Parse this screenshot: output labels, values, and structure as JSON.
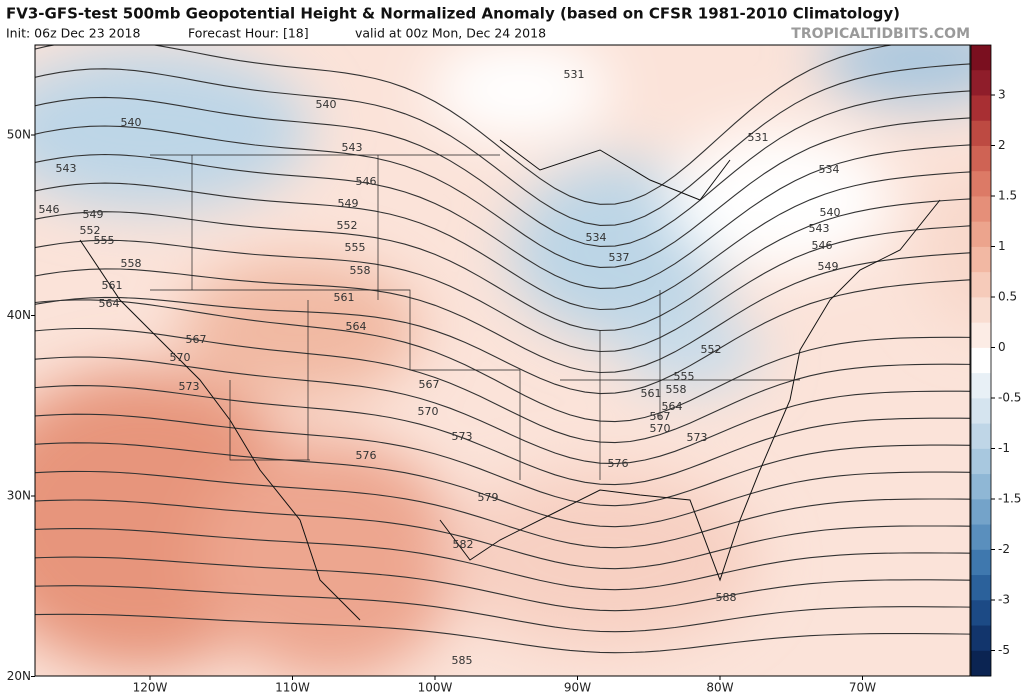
{
  "header": {
    "title": "FV3-GFS-test 500mb Geopotential Height & Normalized Anomaly (based on CFSR 1981-2010 Climatology)",
    "init": "Init: 06z Dec 23 2018",
    "forecast": "Forecast Hour: [18]",
    "valid": "valid at 00z Mon, Dec 24 2018",
    "watermark": "TROPICALTIDBITS.COM"
  },
  "map": {
    "lat_labels": [
      "50N",
      "40N",
      "30N",
      "20N"
    ],
    "lon_labels": [
      "120W",
      "110W",
      "100W",
      "90W",
      "80W",
      "70W"
    ],
    "contour_labels": [
      "531",
      "531",
      "534",
      "540",
      "540",
      "543",
      "543",
      "546",
      "546",
      "549",
      "549",
      "552",
      "552",
      "555",
      "555",
      "558",
      "558",
      "561",
      "561",
      "564",
      "564",
      "567",
      "567",
      "570",
      "570",
      "573",
      "573",
      "576",
      "576",
      "579",
      "582",
      "585",
      "588",
      "534",
      "537",
      "540",
      "543",
      "546",
      "549",
      "552",
      "555",
      "558",
      "561",
      "564",
      "567",
      "570",
      "573"
    ]
  },
  "colorbar": {
    "ticks": [
      3,
      2,
      1.5,
      1,
      0.5,
      0,
      -0.5,
      -1,
      -1.5,
      -2,
      -3,
      -5
    ],
    "colors": [
      "#7a0f1f",
      "#8f1d2a",
      "#a82f33",
      "#bd4a42",
      "#cf6354",
      "#dc7a66",
      "#e58f79",
      "#eca48d",
      "#f2b8a3",
      "#f6cbba",
      "#f9ddd1",
      "#fcece5",
      "#ffffff",
      "#e8f0f6",
      "#d5e4ef",
      "#bfd6e7",
      "#a8c8df",
      "#8fb7d5",
      "#74a3c9",
      "#5a8fbd",
      "#3f78ae",
      "#2b619b",
      "#1c4a85",
      "#12356c",
      "#0b2452"
    ]
  }
}
